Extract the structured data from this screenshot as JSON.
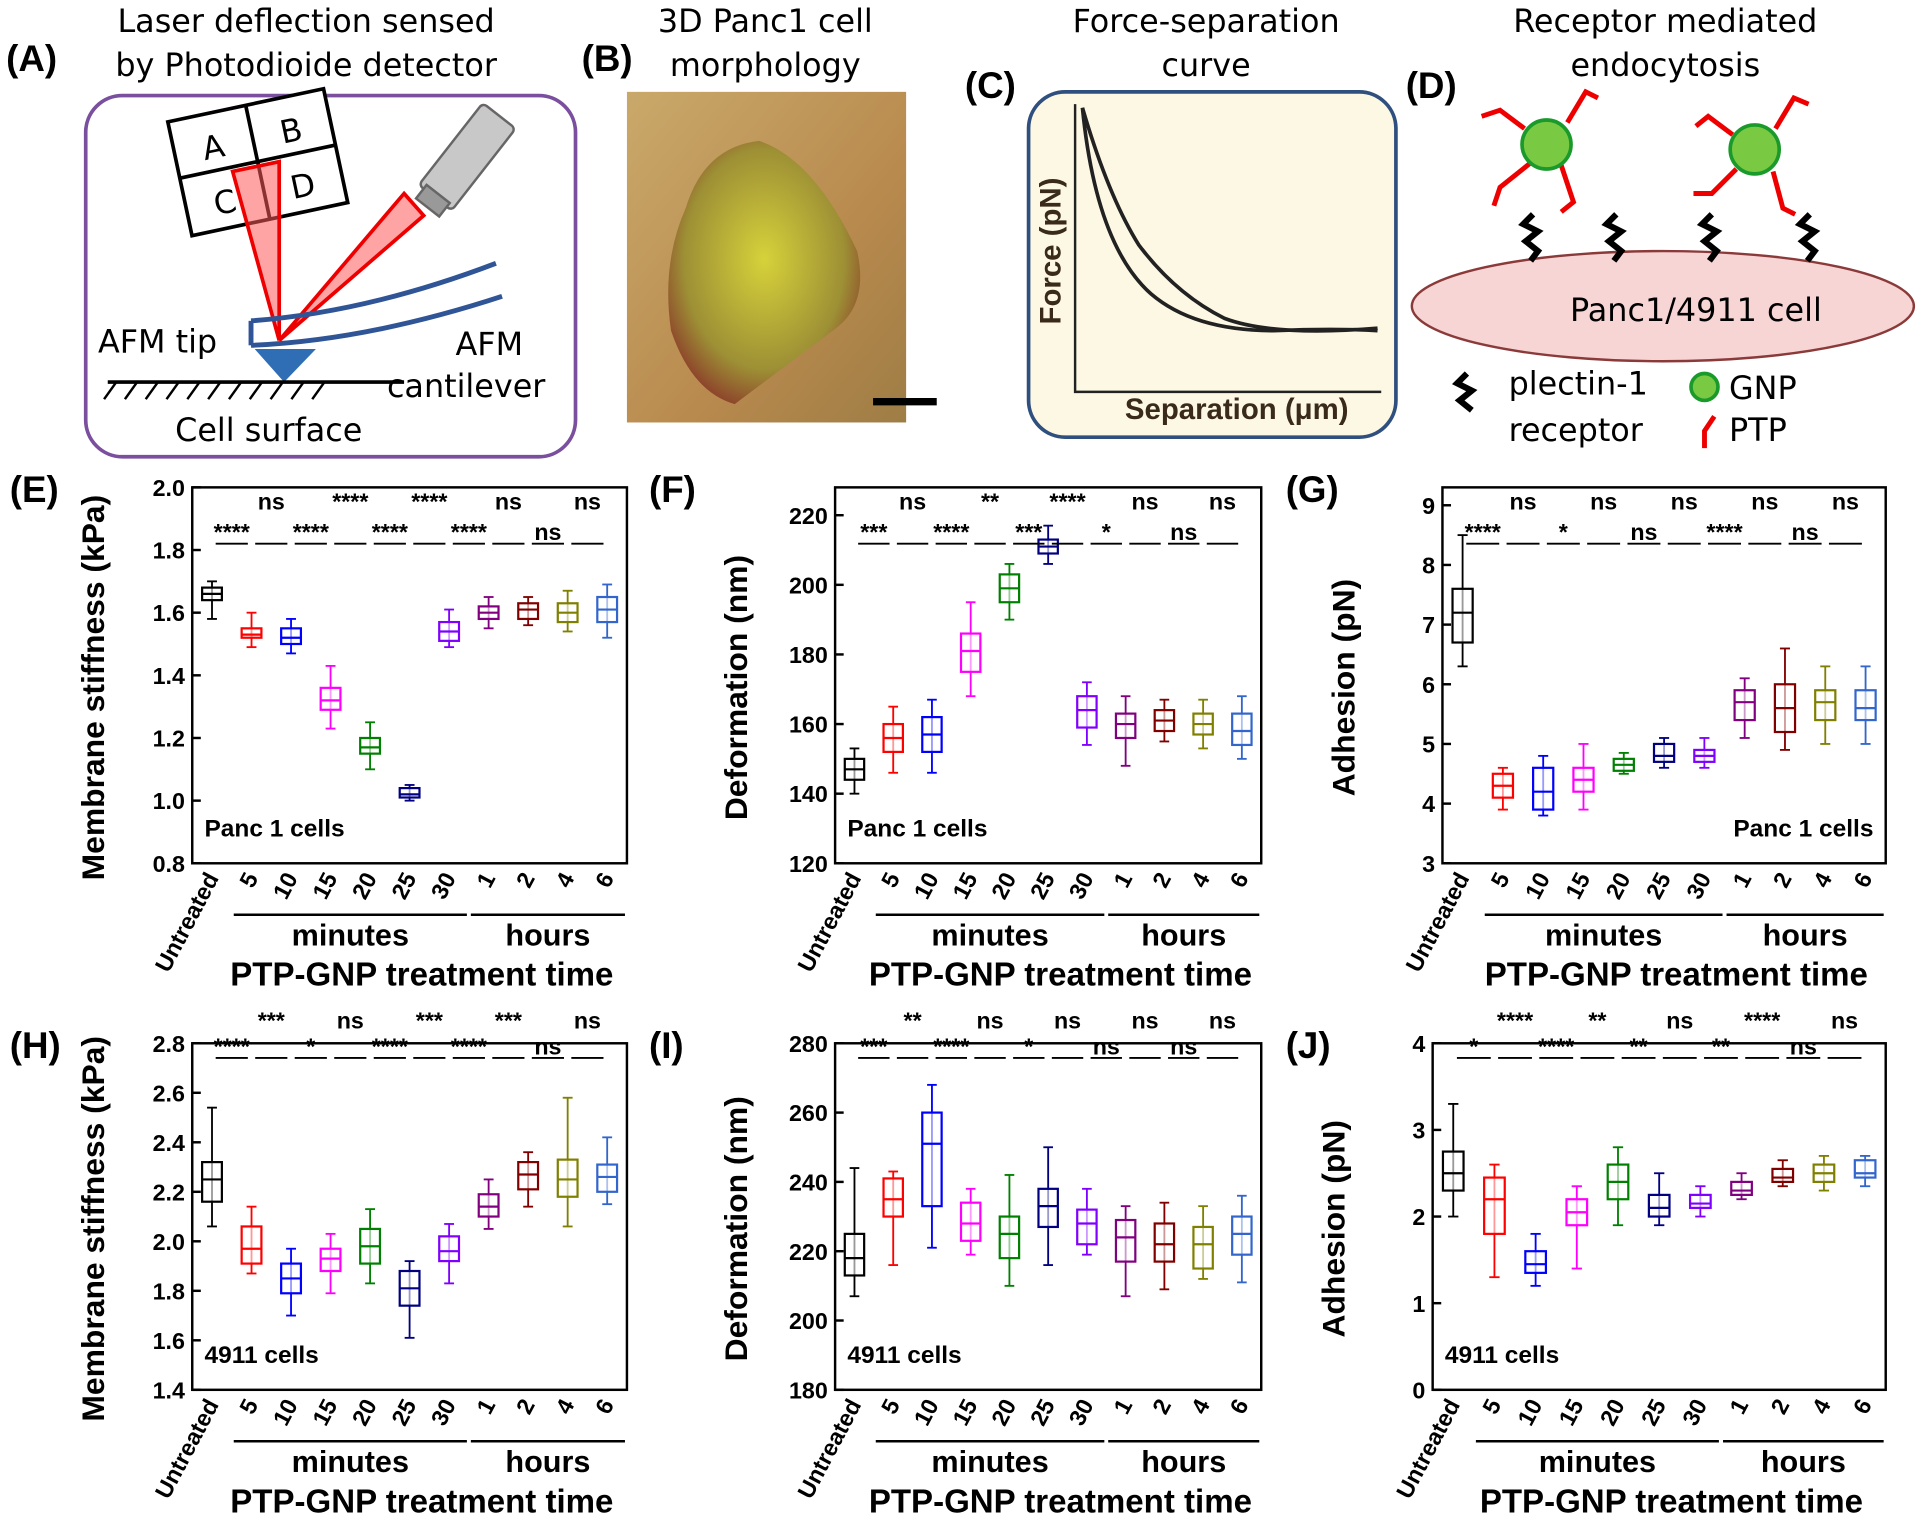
{
  "diagrams": {
    "A": {
      "label": "(A)",
      "title": [
        "Laser deflection sensed",
        "by Photodioide detector"
      ],
      "detector_quadrants": [
        "A",
        "B",
        "C",
        "D"
      ],
      "tip_label": "AFM tip",
      "cantilever_label": [
        "AFM",
        "cantilever"
      ],
      "surface_label": "Cell surface"
    },
    "B": {
      "label": "(B)",
      "title": [
        "3D Panc1 cell",
        "morphology"
      ]
    },
    "C": {
      "label": "(C)",
      "title": [
        "Force-separation",
        "curve"
      ],
      "ylabel": "Force (pN)",
      "xlabel": "Separation (μm)"
    },
    "D": {
      "label": "(D)",
      "title": [
        "Receptor mediated",
        "endocytosis"
      ],
      "cell_label": "Panc1/4911  cell",
      "legend": {
        "receptor": [
          "plectin-1",
          "receptor"
        ],
        "gnp": "GNP",
        "ptp": "PTP"
      }
    }
  },
  "chart_data": [
    {
      "type": "box",
      "panel_label": "(E)",
      "ylabel": "Membrane stiffness (kPa)",
      "xlabel": "PTP-GNP treatment time",
      "annotation": "Panc 1 cells",
      "annotation_corner": "lower left",
      "categories": [
        "Untreated",
        "5",
        "10",
        "15",
        "20",
        "25",
        "30",
        "1",
        "2",
        "4",
        "6"
      ],
      "groups": [
        "minutes",
        "hours"
      ],
      "colors": [
        "#000000",
        "#ff0000",
        "#0000ff",
        "#ff00ff",
        "#008000",
        "#000080",
        "#8000ff",
        "#800080",
        "#800000",
        "#808000",
        "#3366cc"
      ],
      "ylim": [
        0.8,
        2.0
      ],
      "yticks": [
        0.8,
        {
          "value": 1,
          "label": "1.0"
        },
        1.2,
        1.4,
        1.6,
        1.8,
        {
          "value": 2,
          "label": "2.0"
        }
      ],
      "significance": [
        "****",
        "ns",
        "****",
        "****",
        "****",
        "****",
        "****",
        "ns",
        "ns",
        "ns"
      ],
      "boxes": [
        {
          "min": 1.58,
          "q1": 1.64,
          "median": 1.66,
          "q3": 1.68,
          "max": 1.7
        },
        {
          "min": 1.49,
          "q1": 1.52,
          "median": 1.53,
          "q3": 1.55,
          "max": 1.6
        },
        {
          "min": 1.47,
          "q1": 1.5,
          "median": 1.52,
          "q3": 1.55,
          "max": 1.58
        },
        {
          "min": 1.23,
          "q1": 1.29,
          "median": 1.32,
          "q3": 1.36,
          "max": 1.43
        },
        {
          "min": 1.1,
          "q1": 1.15,
          "median": 1.17,
          "q3": 1.2,
          "max": 1.25
        },
        {
          "min": 1.0,
          "q1": 1.01,
          "median": 1.02,
          "q3": 1.04,
          "max": 1.05
        },
        {
          "min": 1.49,
          "q1": 1.51,
          "median": 1.54,
          "q3": 1.57,
          "max": 1.61
        },
        {
          "min": 1.55,
          "q1": 1.58,
          "median": 1.6,
          "q3": 1.62,
          "max": 1.65
        },
        {
          "min": 1.56,
          "q1": 1.58,
          "median": 1.61,
          "q3": 1.63,
          "max": 1.65
        },
        {
          "min": 1.54,
          "q1": 1.57,
          "median": 1.6,
          "q3": 1.63,
          "max": 1.67
        },
        {
          "min": 1.52,
          "q1": 1.57,
          "median": 1.61,
          "q3": 1.65,
          "max": 1.69
        }
      ]
    },
    {
      "type": "box",
      "panel_label": "(F)",
      "ylabel": "Deformation (nm)",
      "xlabel": "PTP-GNP treatment time",
      "annotation": "Panc 1 cells",
      "annotation_corner": "lower left",
      "categories": [
        "Untreated",
        "5",
        "10",
        "15",
        "20",
        "25",
        "30",
        "1",
        "2",
        "4",
        "6"
      ],
      "groups": [
        "minutes",
        "hours"
      ],
      "colors": [
        "#000000",
        "#ff0000",
        "#0000ff",
        "#ff00ff",
        "#008000",
        "#000080",
        "#8000ff",
        "#800080",
        "#800000",
        "#808000",
        "#3366cc"
      ],
      "ylim": [
        120,
        228
      ],
      "yticks": [
        120,
        140,
        160,
        180,
        200,
        220
      ],
      "significance": [
        "***",
        "ns",
        "****",
        "**",
        "***",
        "****",
        "*",
        "ns",
        "ns",
        "ns"
      ],
      "boxes": [
        {
          "min": 140,
          "q1": 144,
          "median": 147,
          "q3": 150,
          "max": 153
        },
        {
          "min": 146,
          "q1": 152,
          "median": 156,
          "q3": 160,
          "max": 165
        },
        {
          "min": 146,
          "q1": 152,
          "median": 157,
          "q3": 162,
          "max": 167
        },
        {
          "min": 168,
          "q1": 175,
          "median": 181,
          "q3": 186,
          "max": 195
        },
        {
          "min": 190,
          "q1": 195,
          "median": 199,
          "q3": 203,
          "max": 206
        },
        {
          "min": 206,
          "q1": 209,
          "median": 211,
          "q3": 213,
          "max": 217
        },
        {
          "min": 154,
          "q1": 159,
          "median": 164,
          "q3": 168,
          "max": 172
        },
        {
          "min": 148,
          "q1": 156,
          "median": 160,
          "q3": 163,
          "max": 168
        },
        {
          "min": 155,
          "q1": 158,
          "median": 161,
          "q3": 164,
          "max": 167
        },
        {
          "min": 153,
          "q1": 157,
          "median": 160,
          "q3": 163,
          "max": 167
        },
        {
          "min": 150,
          "q1": 154,
          "median": 158,
          "q3": 163,
          "max": 168
        }
      ]
    },
    {
      "type": "box",
      "panel_label": "(G)",
      "ylabel": "Adhesion (pN)",
      "xlabel": "PTP-GNP treatment time",
      "annotation": "Panc 1 cells",
      "annotation_corner": "lower right",
      "categories": [
        "Untreated",
        "5",
        "10",
        "15",
        "20",
        "25",
        "30",
        "1",
        "2",
        "4",
        "6"
      ],
      "groups": [
        "minutes",
        "hours"
      ],
      "colors": [
        "#000000",
        "#ff0000",
        "#0000ff",
        "#ff00ff",
        "#008000",
        "#000080",
        "#8000ff",
        "#800080",
        "#800000",
        "#808000",
        "#3366cc"
      ],
      "ylim": [
        3,
        9.3
      ],
      "yticks": [
        3,
        4,
        5,
        6,
        7,
        8,
        9
      ],
      "significance": [
        "****",
        "ns",
        "*",
        "ns",
        "ns",
        "ns",
        "****",
        "ns",
        "ns",
        "ns"
      ],
      "boxes": [
        {
          "min": 6.3,
          "q1": 6.7,
          "median": 7.2,
          "q3": 7.6,
          "max": 8.5
        },
        {
          "min": 3.9,
          "q1": 4.1,
          "median": 4.3,
          "q3": 4.5,
          "max": 4.6
        },
        {
          "min": 3.8,
          "q1": 3.9,
          "median": 4.2,
          "q3": 4.6,
          "max": 4.8
        },
        {
          "min": 3.9,
          "q1": 4.2,
          "median": 4.4,
          "q3": 4.6,
          "max": 5.0
        },
        {
          "min": 4.5,
          "q1": 4.55,
          "median": 4.65,
          "q3": 4.75,
          "max": 4.85
        },
        {
          "min": 4.6,
          "q1": 4.7,
          "median": 4.8,
          "q3": 5.0,
          "max": 5.1
        },
        {
          "min": 4.6,
          "q1": 4.7,
          "median": 4.8,
          "q3": 4.9,
          "max": 5.1
        },
        {
          "min": 5.1,
          "q1": 5.4,
          "median": 5.7,
          "q3": 5.9,
          "max": 6.1
        },
        {
          "min": 4.9,
          "q1": 5.2,
          "median": 5.6,
          "q3": 6.0,
          "max": 6.6
        },
        {
          "min": 5.0,
          "q1": 5.4,
          "median": 5.7,
          "q3": 5.9,
          "max": 6.3
        },
        {
          "min": 5.0,
          "q1": 5.4,
          "median": 5.6,
          "q3": 5.9,
          "max": 6.3
        }
      ]
    },
    {
      "type": "box",
      "panel_label": "(H)",
      "ylabel": "Membrane stiffness (kPa)",
      "xlabel": "PTP-GNP treatment time",
      "annotation": "4911 cells",
      "annotation_corner": "lower left",
      "categories": [
        "Untreated",
        "5",
        "10",
        "15",
        "20",
        "25",
        "30",
        "1",
        "2",
        "4",
        "6"
      ],
      "groups": [
        "minutes",
        "hours"
      ],
      "colors": [
        "#000000",
        "#ff0000",
        "#0000ff",
        "#ff00ff",
        "#008000",
        "#000080",
        "#8000ff",
        "#800080",
        "#800000",
        "#808000",
        "#3366cc"
      ],
      "ylim": [
        1.4,
        2.8
      ],
      "yticks": [
        1.4,
        1.6,
        1.8,
        {
          "value": 2,
          "label": "2.0"
        },
        2.2,
        2.4,
        2.6,
        2.8
      ],
      "significance": [
        "****",
        "***",
        "*",
        "ns",
        "****",
        "***",
        "****",
        "***",
        "ns",
        "ns"
      ],
      "boxes": [
        {
          "min": 2.06,
          "q1": 2.16,
          "median": 2.25,
          "q3": 2.32,
          "max": 2.54
        },
        {
          "min": 1.87,
          "q1": 1.91,
          "median": 1.97,
          "q3": 2.06,
          "max": 2.14
        },
        {
          "min": 1.7,
          "q1": 1.79,
          "median": 1.85,
          "q3": 1.91,
          "max": 1.97
        },
        {
          "min": 1.79,
          "q1": 1.88,
          "median": 1.93,
          "q3": 1.97,
          "max": 2.03
        },
        {
          "min": 1.83,
          "q1": 1.91,
          "median": 1.98,
          "q3": 2.05,
          "max": 2.13
        },
        {
          "min": 1.61,
          "q1": 1.74,
          "median": 1.81,
          "q3": 1.88,
          "max": 1.92
        },
        {
          "min": 1.83,
          "q1": 1.92,
          "median": 1.96,
          "q3": 2.02,
          "max": 2.07
        },
        {
          "min": 2.05,
          "q1": 2.1,
          "median": 2.14,
          "q3": 2.19,
          "max": 2.25
        },
        {
          "min": 2.14,
          "q1": 2.21,
          "median": 2.27,
          "q3": 2.32,
          "max": 2.36
        },
        {
          "min": 2.06,
          "q1": 2.18,
          "median": 2.25,
          "q3": 2.33,
          "max": 2.58
        },
        {
          "min": 2.15,
          "q1": 2.2,
          "median": 2.26,
          "q3": 2.31,
          "max": 2.42
        }
      ]
    },
    {
      "type": "box",
      "panel_label": "(I)",
      "ylabel": "Deformation (nm)",
      "xlabel": "PTP-GNP treatment time",
      "annotation": "4911 cells",
      "annotation_corner": "lower left",
      "categories": [
        "Untreated",
        "5",
        "10",
        "15",
        "20",
        "25",
        "30",
        "1",
        "2",
        "4",
        "6"
      ],
      "groups": [
        "minutes",
        "hours"
      ],
      "colors": [
        "#000000",
        "#ff0000",
        "#0000ff",
        "#ff00ff",
        "#008000",
        "#000080",
        "#8000ff",
        "#800080",
        "#800000",
        "#808000",
        "#3366cc"
      ],
      "ylim": [
        180,
        280
      ],
      "yticks": [
        180,
        200,
        220,
        240,
        260,
        280
      ],
      "significance": [
        "***",
        "**",
        "****",
        "ns",
        "*",
        "ns",
        "ns",
        "ns",
        "ns",
        "ns"
      ],
      "boxes": [
        {
          "min": 207,
          "q1": 213,
          "median": 218,
          "q3": 225,
          "max": 244
        },
        {
          "min": 216,
          "q1": 230,
          "median": 235,
          "q3": 241,
          "max": 243
        },
        {
          "min": 221,
          "q1": 233,
          "median": 251,
          "q3": 260,
          "max": 268
        },
        {
          "min": 219,
          "q1": 223,
          "median": 228,
          "q3": 234,
          "max": 238
        },
        {
          "min": 210,
          "q1": 218,
          "median": 225,
          "q3": 230,
          "max": 242
        },
        {
          "min": 216,
          "q1": 227,
          "median": 233,
          "q3": 238,
          "max": 250
        },
        {
          "min": 219,
          "q1": 222,
          "median": 228,
          "q3": 232,
          "max": 238
        },
        {
          "min": 207,
          "q1": 217,
          "median": 224,
          "q3": 229,
          "max": 233
        },
        {
          "min": 209,
          "q1": 217,
          "median": 222,
          "q3": 228,
          "max": 234
        },
        {
          "min": 212,
          "q1": 215,
          "median": 222,
          "q3": 227,
          "max": 233
        },
        {
          "min": 211,
          "q1": 219,
          "median": 225,
          "q3": 230,
          "max": 236
        }
      ]
    },
    {
      "type": "box",
      "panel_label": "(J)",
      "ylabel": "Adhesion (pN)",
      "xlabel": "PTP-GNP treatment time",
      "annotation": "4911 cells",
      "annotation_corner": "lower left",
      "categories": [
        "Untreated",
        "5",
        "10",
        "15",
        "20",
        "25",
        "30",
        "1",
        "2",
        "4",
        "6"
      ],
      "groups": [
        "minutes",
        "hours"
      ],
      "colors": [
        "#000000",
        "#ff0000",
        "#0000ff",
        "#ff00ff",
        "#008000",
        "#000080",
        "#8000ff",
        "#800080",
        "#800000",
        "#808000",
        "#3366cc"
      ],
      "ylim": [
        0,
        4
      ],
      "yticks": [
        0,
        1,
        2,
        3,
        4
      ],
      "significance": [
        "*",
        "****",
        "****",
        "**",
        "**",
        "ns",
        "**",
        "****",
        "ns",
        "ns"
      ],
      "boxes": [
        {
          "min": 2.0,
          "q1": 2.3,
          "median": 2.5,
          "q3": 2.75,
          "max": 3.3
        },
        {
          "min": 1.3,
          "q1": 1.8,
          "median": 2.2,
          "q3": 2.45,
          "max": 2.6
        },
        {
          "min": 1.2,
          "q1": 1.35,
          "median": 1.45,
          "q3": 1.6,
          "max": 1.8
        },
        {
          "min": 1.4,
          "q1": 1.9,
          "median": 2.05,
          "q3": 2.2,
          "max": 2.35
        },
        {
          "min": 1.9,
          "q1": 2.2,
          "median": 2.4,
          "q3": 2.6,
          "max": 2.8
        },
        {
          "min": 1.9,
          "q1": 2.0,
          "median": 2.1,
          "q3": 2.25,
          "max": 2.5
        },
        {
          "min": 2.0,
          "q1": 2.1,
          "median": 2.15,
          "q3": 2.25,
          "max": 2.35
        },
        {
          "min": 2.2,
          "q1": 2.25,
          "median": 2.3,
          "q3": 2.4,
          "max": 2.5
        },
        {
          "min": 2.35,
          "q1": 2.4,
          "median": 2.45,
          "q3": 2.55,
          "max": 2.65
        },
        {
          "min": 2.3,
          "q1": 2.4,
          "median": 2.5,
          "q3": 2.6,
          "max": 2.7
        },
        {
          "min": 2.35,
          "q1": 2.45,
          "median": 2.5,
          "q3": 2.65,
          "max": 2.7
        }
      ]
    }
  ]
}
